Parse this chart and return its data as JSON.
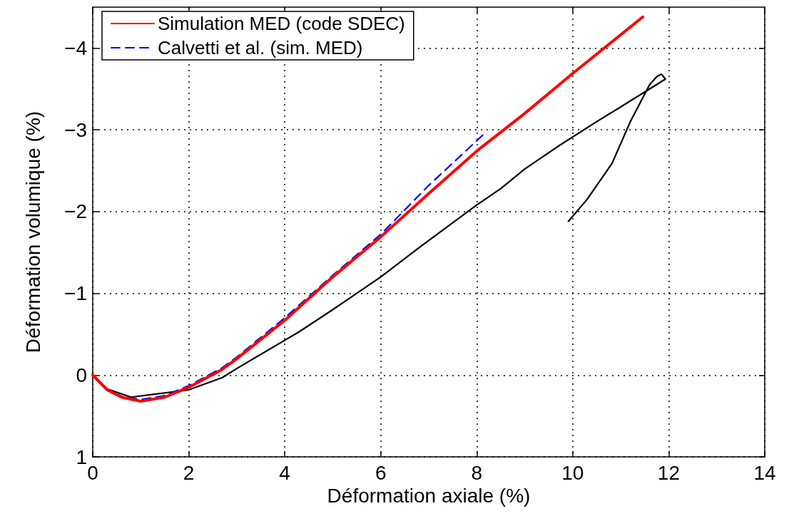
{
  "chart_data": {
    "type": "line",
    "xlabel": "Déformation axiale (%)",
    "ylabel": "Déformation volumique (%)",
    "xlim": [
      0,
      14
    ],
    "xticks": [
      0,
      2,
      4,
      6,
      8,
      10,
      12,
      14
    ],
    "ylim": [
      1,
      -4.5
    ],
    "yticks": [
      1,
      0,
      {
        "value": -1,
        "label": "−1"
      },
      {
        "value": -2,
        "label": "−2"
      },
      {
        "value": -3,
        "label": "−3"
      },
      {
        "value": -4,
        "label": "−4"
      }
    ],
    "grid": true,
    "legend": "top left",
    "marker": "none",
    "series": [
      {
        "name": "Simulation MED (code SDEC)",
        "color": "#ff0000",
        "line_style": "solid",
        "x": [
          0,
          0.3,
          0.6,
          1,
          1.5,
          2,
          2.7,
          3,
          4,
          5,
          6,
          7,
          8,
          9,
          10,
          11.46
        ],
        "values": [
          0,
          0.18,
          0.27,
          0.32,
          0.27,
          0.15,
          -0.07,
          -0.2,
          -0.67,
          -1.2,
          -1.69,
          -2.22,
          -2.74,
          -3.2,
          -3.69,
          -4.38
        ]
      },
      {
        "name": "Calvetti et al. (sim. MED)",
        "color": "#0000ff",
        "line_style": "dashed",
        "x": [
          0,
          0.3,
          0.6,
          1,
          1.5,
          2,
          2.7,
          3,
          4,
          5,
          6,
          7,
          8.19
        ],
        "values": [
          0,
          0.17,
          0.26,
          0.3,
          0.25,
          0.13,
          -0.09,
          -0.22,
          -0.7,
          -1.22,
          -1.72,
          -2.32,
          -2.97
        ]
      },
      {
        "color": "#000000",
        "line_style": "solid",
        "x": [
          0,
          0.3,
          0.8,
          2,
          2.7,
          3,
          4.3,
          5,
          6,
          6.78,
          8,
          8.5,
          9,
          9.7,
          10.5,
          11,
          11.93,
          11.85,
          11.75,
          11.6,
          11.2,
          10.82,
          10.3,
          9.91
        ],
        "values": [
          0,
          0.17,
          0.27,
          0.18,
          0.03,
          -0.08,
          -0.53,
          -0.8,
          -1.2,
          -1.55,
          -2.08,
          -2.28,
          -2.52,
          -2.8,
          -3.1,
          -3.28,
          -3.62,
          -3.68,
          -3.65,
          -3.55,
          -3.1,
          -2.59,
          -2.15,
          -1.88
        ]
      }
    ]
  }
}
